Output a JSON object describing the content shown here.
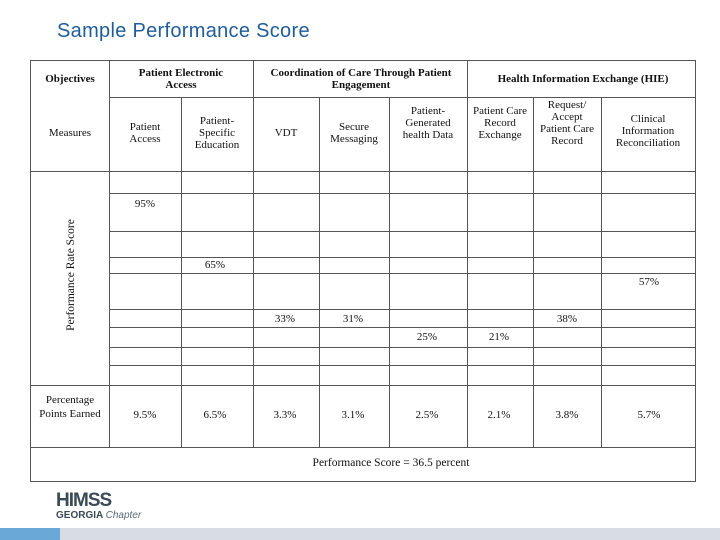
{
  "title": "Sample Performance Score",
  "table": {
    "objectives_label": "Objectives",
    "measures_label": "Measures",
    "objectives": [
      "Patient Electronic Access",
      "Coordination of Care Through Patient Engagement",
      "Health Information Exchange (HIE)"
    ],
    "measures": [
      "Patient Access",
      "Patient-Specific Education",
      "VDT",
      "Secure Messaging",
      "Patient-Generated health Data",
      "Patient Care Record Exchange",
      "Request/ Accept Patient Care Record",
      "Clinical Information Reconciliation"
    ],
    "performance_label": "Performance Rate Score",
    "rates": [
      "95%",
      "65%",
      "33%",
      "31%",
      "25%",
      "21%",
      "38%",
      "57%"
    ],
    "points_label": "Percentage Points Earned",
    "points": [
      "9.5%",
      "6.5%",
      "3.3%",
      "3.1%",
      "2.5%",
      "2.1%",
      "3.8%",
      "5.7%"
    ],
    "summary": "Performance Score = 36.5 percent"
  },
  "logo": {
    "main": "HIMSS",
    "sub_bold": "GEORGIA",
    "sub_italic": "Chapter"
  }
}
